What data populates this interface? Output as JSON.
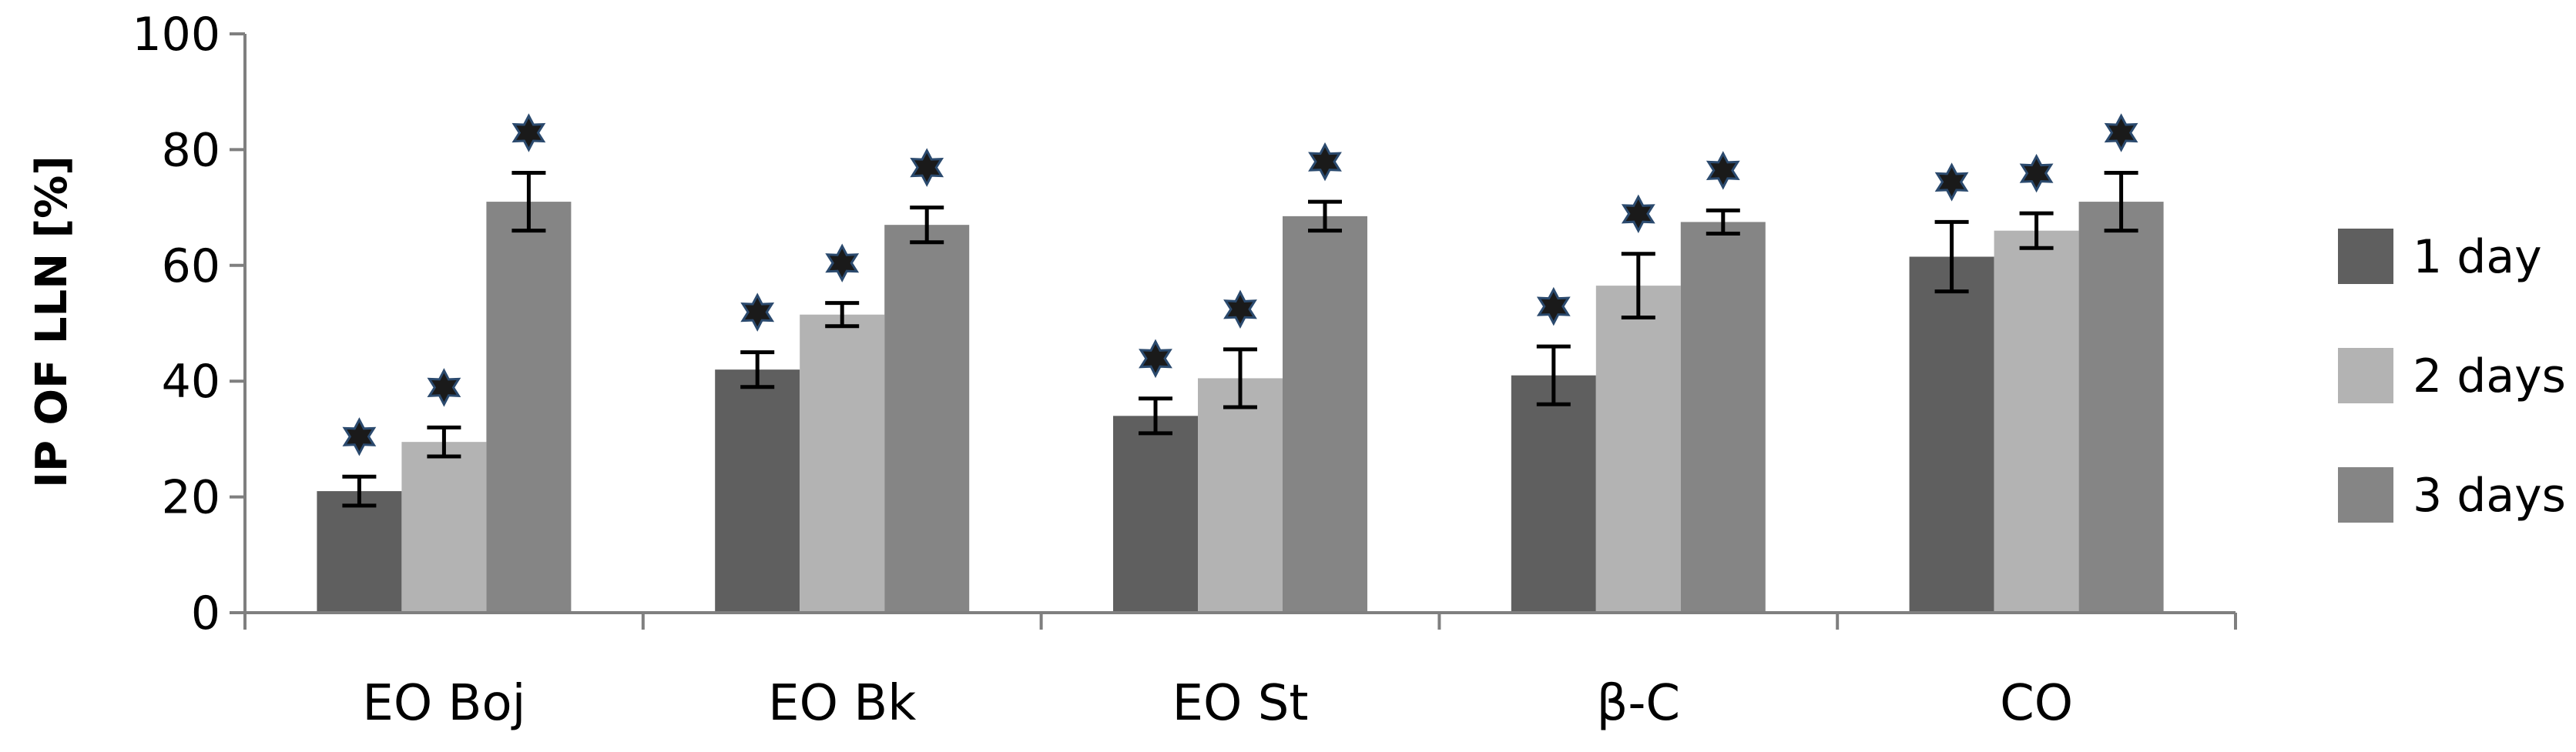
{
  "chart_data": {
    "type": "bar",
    "ylabel": "IP OF LLN [%]",
    "xlabel": "",
    "title": "",
    "ylim": [
      0,
      100
    ],
    "yticks": [
      0,
      20,
      40,
      60,
      80,
      100
    ],
    "categories": [
      "EO Boj",
      "EO Bk",
      "EO St",
      "β-C",
      "CO"
    ],
    "legend_position": "right",
    "grid": false,
    "series": [
      {
        "name": "1 day",
        "color": "#5f5f5f",
        "values": [
          21,
          42,
          34,
          41,
          61.5
        ],
        "errors": [
          2.5,
          3,
          3,
          5,
          6
        ],
        "significant": [
          true,
          true,
          true,
          true,
          true
        ]
      },
      {
        "name": "2 days",
        "color": "#b3b3b3",
        "values": [
          29.5,
          51.5,
          40.5,
          56.5,
          66
        ],
        "errors": [
          2.5,
          2,
          5,
          5.5,
          3
        ],
        "significant": [
          true,
          true,
          true,
          true,
          true
        ]
      },
      {
        "name": "3 days",
        "color": "#858585",
        "values": [
          71,
          67,
          68.5,
          67.5,
          71
        ],
        "errors": [
          5,
          3,
          2.5,
          2,
          5
        ],
        "significant": [
          true,
          true,
          true,
          true,
          true
        ]
      }
    ],
    "significance_marker": "asterisk"
  }
}
